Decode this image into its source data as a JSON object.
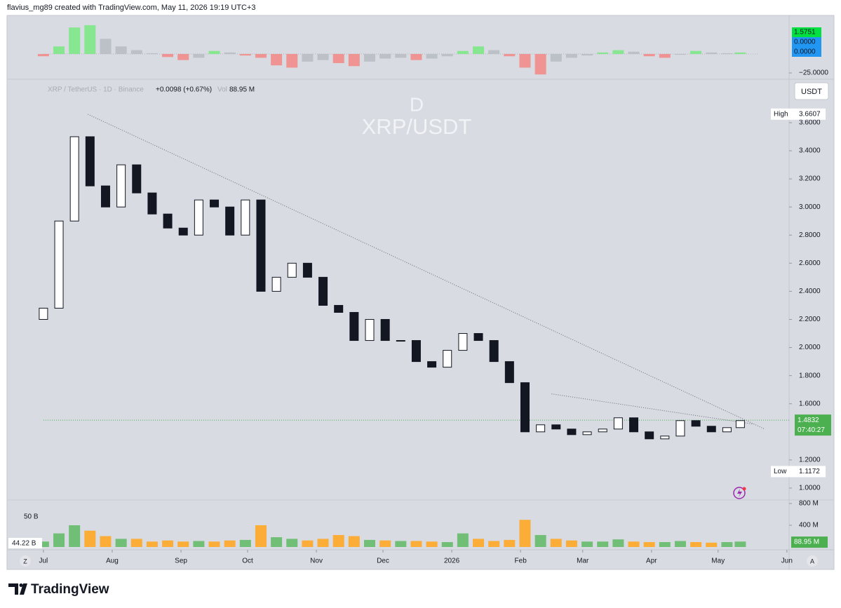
{
  "header": "flavius_mg89 created with TradingView.com, May 11, 2026 19:19 UTC+3",
  "footer": "TradingView",
  "currency_button": "USDT",
  "scale_buttons": [
    "Z",
    "A"
  ],
  "chart_data": [
    {
      "type": "bar",
      "x": [
        0,
        7,
        14,
        21,
        28,
        35,
        42,
        49,
        56,
        63,
        70,
        77,
        84,
        91,
        98,
        105,
        112,
        119,
        126,
        133,
        140,
        147,
        154,
        161,
        168,
        175,
        182,
        189,
        196,
        203,
        210,
        217,
        224,
        231,
        238,
        245,
        252,
        259,
        266,
        273,
        280,
        287,
        294,
        301,
        308,
        314
      ],
      "values": [
        -3,
        10,
        35,
        38,
        20,
        10,
        5,
        1,
        -4,
        -8,
        -5,
        4,
        2,
        -2,
        -5,
        -15,
        -18,
        -10,
        -8,
        -12,
        -16,
        -10,
        -6,
        -5,
        -8,
        -6,
        -3,
        4,
        10,
        5,
        -3,
        -18,
        -27,
        -10,
        -5,
        -2,
        2,
        5,
        3,
        -3,
        -5,
        -1,
        4,
        2,
        1,
        2
      ],
      "colors": {
        "positive_rising": "#7ee787",
        "positive_falling": "#b9bcc4",
        "negative_falling": "#f28b8b",
        "negative_rising": "#b9bcc4"
      },
      "xlim": [
        -16.4,
        336
      ],
      "ylim": [
        -32.4,
        50.9
      ],
      "yticks": [
        {
          "value": -25,
          "label": "−25.0000"
        }
      ],
      "last_values": [
        {
          "value": 1.5751,
          "label": "1.5751",
          "color": "#00e040"
        },
        {
          "value": 0,
          "label": "0.0000",
          "color": "#2196f3"
        },
        {
          "value": 0,
          "label": "0.0000",
          "color": "#2196f3"
        }
      ]
    },
    {
      "type": "candlestick",
      "symbol": "XRP / TetherUS · 1D · Binance",
      "change": "+0.0098 (+0.67%)",
      "volume_label": "Vol",
      "volume_value": "88.95 M",
      "watermark_interval": "D",
      "watermark_symbol": "XRP/USDT",
      "x": [
        0,
        7,
        14,
        21,
        28,
        35,
        42,
        49,
        56,
        63,
        70,
        77,
        84,
        91,
        98,
        105,
        112,
        119,
        126,
        133,
        140,
        147,
        154,
        161,
        168,
        175,
        182,
        189,
        196,
        203,
        210,
        217,
        224,
        231,
        238,
        245,
        252,
        259,
        266,
        273,
        280,
        287,
        294,
        301,
        308,
        314
      ],
      "open": [
        2.2,
        2.28,
        2.9,
        3.5,
        3.15,
        3.0,
        3.3,
        3.1,
        2.95,
        2.85,
        2.8,
        3.05,
        3.0,
        2.8,
        3.05,
        2.4,
        2.5,
        2.6,
        2.5,
        2.3,
        2.25,
        2.05,
        2.2,
        2.05,
        2.05,
        1.9,
        1.86,
        1.98,
        2.1,
        2.05,
        1.9,
        1.75,
        1.4,
        1.45,
        1.42,
        1.38,
        1.4,
        1.42,
        1.5,
        1.4,
        1.35,
        1.37,
        1.48,
        1.44,
        1.4,
        1.43
      ],
      "high": {
        "value": 3.6607,
        "label": "3.6607"
      },
      "low": {
        "value": 1.1172,
        "label": "1.1172"
      },
      "close": [
        2.28,
        2.9,
        3.5,
        3.15,
        3.0,
        3.3,
        3.1,
        2.95,
        2.85,
        2.8,
        3.05,
        3.0,
        2.8,
        3.05,
        2.4,
        2.5,
        2.6,
        2.5,
        2.3,
        2.25,
        2.05,
        2.2,
        2.05,
        2.05,
        1.9,
        1.86,
        1.98,
        2.1,
        2.05,
        1.9,
        1.75,
        1.4,
        1.45,
        1.42,
        1.38,
        1.4,
        1.42,
        1.5,
        1.4,
        1.35,
        1.37,
        1.48,
        1.44,
        1.4,
        1.43,
        1.48
      ],
      "up_color": "#ffffff",
      "down_color": "#131722",
      "xlim": [
        -16.4,
        336
      ],
      "ylim": [
        0.915,
        3.899
      ],
      "yticks": [
        {
          "value": 1.0,
          "label": "1.0000"
        },
        {
          "value": 1.2,
          "label": "1.2000"
        },
        {
          "value": 1.6,
          "label": "1.6000"
        },
        {
          "value": 1.8,
          "label": "1.8000"
        },
        {
          "value": 2.0,
          "label": "2.0000"
        },
        {
          "value": 2.2,
          "label": "2.2000"
        },
        {
          "value": 2.4,
          "label": "2.4000"
        },
        {
          "value": 2.6,
          "label": "2.6000"
        },
        {
          "value": 2.8,
          "label": "2.8000"
        },
        {
          "value": 3.0,
          "label": "3.0000"
        },
        {
          "value": 3.2,
          "label": "3.2000"
        },
        {
          "value": 3.4,
          "label": "3.4000"
        },
        {
          "value": 3.6,
          "label": "3.6000"
        }
      ],
      "xticks": [
        {
          "value": 0,
          "label": "Jul"
        },
        {
          "value": 31,
          "label": "Aug"
        },
        {
          "value": 62,
          "label": "Sep"
        },
        {
          "value": 92,
          "label": "Oct"
        },
        {
          "value": 123,
          "label": "Nov"
        },
        {
          "value": 153,
          "label": "Dec"
        },
        {
          "value": 184,
          "label": "2026"
        },
        {
          "value": 215,
          "label": "Feb"
        },
        {
          "value": 243,
          "label": "Mar"
        },
        {
          "value": 274,
          "label": "Apr"
        },
        {
          "value": 304,
          "label": "May"
        },
        {
          "value": 335,
          "label": "Jun"
        }
      ],
      "trendlines": [
        {
          "x": [
            20,
            325
          ],
          "y": [
            3.66,
            1.42
          ]
        },
        {
          "x": [
            229,
            320
          ],
          "y": [
            1.67,
            1.455
          ]
        }
      ],
      "last_price": {
        "value": 1.4832,
        "label": "1.4832"
      },
      "countdown": "07:40:27",
      "last_price_color": "#4caf50",
      "high_text": "High",
      "low_text": "Low",
      "grid": false
    },
    {
      "type": "bar",
      "x": [
        0,
        7,
        14,
        21,
        28,
        35,
        42,
        49,
        56,
        63,
        70,
        77,
        84,
        91,
        98,
        105,
        112,
        119,
        126,
        133,
        140,
        147,
        154,
        161,
        168,
        175,
        182,
        189,
        196,
        203,
        210,
        217,
        224,
        231,
        238,
        245,
        252,
        259,
        266,
        273,
        280,
        287,
        294,
        301,
        308,
        314
      ],
      "values": [
        100,
        250,
        400,
        300,
        200,
        150,
        150,
        100,
        120,
        100,
        110,
        100,
        120,
        130,
        400,
        180,
        150,
        120,
        150,
        220,
        200,
        130,
        120,
        110,
        110,
        100,
        90,
        250,
        150,
        110,
        130,
        500,
        220,
        150,
        120,
        100,
        100,
        140,
        100,
        90,
        90,
        110,
        90,
        80,
        90,
        100
      ],
      "colors": {
        "up": "#66bb6a",
        "down": "#ffa726"
      },
      "xlim": [
        -16.4,
        336
      ],
      "ylim": [
        0,
        864.5
      ],
      "yticks": [
        {
          "value": 400,
          "label": "400 M"
        },
        {
          "value": 800,
          "label": "800 M"
        }
      ],
      "left_label": "50 B",
      "quote_volume": "44.22 B",
      "last_volume": {
        "value": 88.95,
        "label": "88.95 M"
      }
    }
  ]
}
